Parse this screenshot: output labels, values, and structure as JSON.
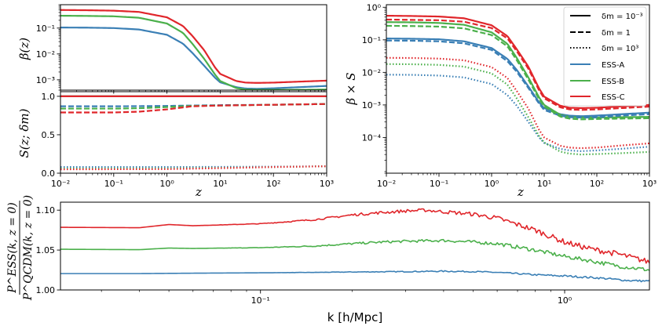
{
  "colors": {
    "ESS-A": "#3a7fb5",
    "ESS-B": "#4bb04b",
    "ESS-C": "#e0262b"
  },
  "chart_data": [
    {
      "id": "beta",
      "type": "line",
      "xscale": "log",
      "yscale": "log",
      "xlim": [
        0.01,
        1000
      ],
      "ylim": [
        0.0004,
        0.8
      ],
      "xticks": [
        0.01,
        0.1,
        1,
        10,
        100,
        1000
      ],
      "xticklabels": [],
      "yticks": [
        0.001,
        0.01,
        0.1
      ],
      "yticklabels": [
        "10⁻³",
        "10⁻²",
        "10⁻¹"
      ],
      "ylabel": "β(z)",
      "xlabel": "",
      "series": [
        {
          "name": "ESS-A",
          "style": "solid",
          "x": [
            0.01,
            0.03,
            0.1,
            0.3,
            1,
            2,
            3,
            5,
            8,
            10,
            20,
            30,
            50,
            100,
            300,
            1000
          ],
          "y": [
            0.105,
            0.104,
            0.1,
            0.088,
            0.055,
            0.025,
            0.011,
            0.0035,
            0.0012,
            0.0008,
            0.00052,
            0.00046,
            0.00045,
            0.00047,
            0.00052,
            0.00058
          ]
        },
        {
          "name": "ESS-B",
          "style": "solid",
          "x": [
            0.01,
            0.03,
            0.1,
            0.3,
            1,
            2,
            3,
            5,
            8,
            10,
            20,
            30,
            50,
            100,
            300,
            1000
          ],
          "y": [
            0.3,
            0.295,
            0.285,
            0.25,
            0.15,
            0.065,
            0.025,
            0.0065,
            0.0016,
            0.0009,
            0.00048,
            0.00042,
            0.00041,
            0.00041,
            0.00041,
            0.00042
          ]
        },
        {
          "name": "ESS-C",
          "style": "solid",
          "x": [
            0.01,
            0.03,
            0.1,
            0.3,
            1,
            2,
            3,
            5,
            8,
            10,
            20,
            30,
            50,
            100,
            300,
            1000
          ],
          "y": [
            0.5,
            0.49,
            0.47,
            0.42,
            0.26,
            0.12,
            0.05,
            0.014,
            0.003,
            0.0017,
            0.0009,
            0.00078,
            0.00076,
            0.00078,
            0.00085,
            0.00093
          ]
        }
      ]
    },
    {
      "id": "S",
      "type": "line",
      "xscale": "log",
      "yscale": "linear",
      "xlim": [
        0.01,
        1000
      ],
      "ylim": [
        0,
        1.06
      ],
      "xticks": [
        0.01,
        0.1,
        1,
        10,
        100,
        1000
      ],
      "xticklabels": [
        "10⁻²",
        "10⁻¹",
        "10⁰",
        "10¹",
        "10²",
        "10³"
      ],
      "yticks": [
        0,
        0.5,
        1.0
      ],
      "yticklabels": [
        "0.0",
        "0.5",
        "1.0"
      ],
      "ylabel": "S(z; δm)",
      "xlabel": "z",
      "series": [
        {
          "name": "ESS-A δm=10⁻³",
          "color": "ESS-A",
          "style": "solid",
          "x": [
            0.01,
            1000
          ],
          "y": [
            1.0,
            1.0
          ]
        },
        {
          "name": "ESS-B δm=10⁻³",
          "color": "ESS-B",
          "style": "solid",
          "x": [
            0.01,
            1000
          ],
          "y": [
            1.0,
            1.0
          ]
        },
        {
          "name": "ESS-C δm=10⁻³",
          "color": "ESS-C",
          "style": "solid",
          "x": [
            0.01,
            1000
          ],
          "y": [
            1.0,
            1.0
          ]
        },
        {
          "name": "ESS-A δm=1",
          "color": "ESS-A",
          "style": "dashed",
          "x": [
            0.01,
            0.1,
            0.3,
            1,
            3,
            10,
            100,
            1000
          ],
          "y": [
            0.87,
            0.87,
            0.872,
            0.875,
            0.88,
            0.885,
            0.89,
            0.9
          ]
        },
        {
          "name": "ESS-B δm=1",
          "color": "ESS-B",
          "style": "dashed",
          "x": [
            0.01,
            0.1,
            0.3,
            1,
            3,
            10,
            100,
            1000
          ],
          "y": [
            0.84,
            0.84,
            0.845,
            0.86,
            0.875,
            0.88,
            0.89,
            0.9
          ]
        },
        {
          "name": "ESS-C δm=1",
          "color": "ESS-C",
          "style": "dashed",
          "x": [
            0.01,
            0.1,
            0.3,
            1,
            3,
            10,
            100,
            1000
          ],
          "y": [
            0.79,
            0.79,
            0.8,
            0.83,
            0.87,
            0.88,
            0.89,
            0.9
          ]
        },
        {
          "name": "ESS-A δm=10³",
          "color": "ESS-A",
          "style": "dotted",
          "x": [
            0.01,
            1,
            10,
            100,
            1000
          ],
          "y": [
            0.08,
            0.08,
            0.082,
            0.085,
            0.09
          ]
        },
        {
          "name": "ESS-B δm=10³",
          "color": "ESS-B",
          "style": "dotted",
          "x": [
            0.01,
            1,
            10,
            100,
            1000
          ],
          "y": [
            0.06,
            0.062,
            0.07,
            0.08,
            0.09
          ]
        },
        {
          "name": "ESS-C δm=10³",
          "color": "ESS-C",
          "style": "dotted",
          "x": [
            0.01,
            1,
            10,
            100,
            1000
          ],
          "y": [
            0.05,
            0.053,
            0.065,
            0.08,
            0.09
          ]
        }
      ]
    },
    {
      "id": "betaS",
      "type": "line",
      "xscale": "log",
      "yscale": "log",
      "xlim": [
        0.01,
        1000
      ],
      "ylim": [
        8e-06,
        1.2
      ],
      "xticks": [
        0.01,
        0.1,
        1,
        10,
        100,
        1000
      ],
      "xticklabels": [
        "10⁻²",
        "10⁻¹",
        "10⁰",
        "10¹",
        "10²",
        "10³"
      ],
      "yticks": [
        0.0001,
        0.001,
        0.01,
        0.1,
        1
      ],
      "yticklabels": [
        "10⁻⁴",
        "10⁻³",
        "10⁻²",
        "10⁻¹",
        "10⁰"
      ],
      "ylabel": "β × S",
      "xlabel": "z",
      "legend": {
        "location": "top-right",
        "styles": [
          {
            "label": "δm = 10⁻³",
            "style": "solid"
          },
          {
            "label": "δm = 1",
            "style": "dashed"
          },
          {
            "label": "δm = 10³",
            "style": "dotted"
          }
        ],
        "models": [
          {
            "label": "ESS-A",
            "color": "ESS-A"
          },
          {
            "label": "ESS-B",
            "color": "ESS-B"
          },
          {
            "label": "ESS-C",
            "color": "ESS-C"
          }
        ]
      },
      "series": [
        {
          "name": "ESS-A δm=10⁻³",
          "color": "ESS-A",
          "style": "solid",
          "x": [
            0.01,
            0.03,
            0.1,
            0.3,
            1,
            2,
            3,
            5,
            8,
            10,
            20,
            30,
            50,
            100,
            300,
            1000
          ],
          "y": [
            0.11,
            0.108,
            0.104,
            0.09,
            0.056,
            0.026,
            0.012,
            0.0037,
            0.0012,
            0.0008,
            0.00052,
            0.00047,
            0.00045,
            0.00047,
            0.00052,
            0.00058
          ]
        },
        {
          "name": "ESS-B δm=10⁻³",
          "color": "ESS-B",
          "style": "solid",
          "x": [
            0.01,
            0.03,
            0.1,
            0.3,
            1,
            2,
            3,
            5,
            8,
            10,
            20,
            30,
            50,
            100,
            300,
            1000
          ],
          "y": [
            0.35,
            0.345,
            0.33,
            0.29,
            0.17,
            0.075,
            0.028,
            0.007,
            0.0017,
            0.001,
            0.0005,
            0.00043,
            0.00041,
            0.00041,
            0.00042,
            0.00043
          ]
        },
        {
          "name": "ESS-C δm=10⁻³",
          "color": "ESS-C",
          "style": "solid",
          "x": [
            0.01,
            0.03,
            0.1,
            0.3,
            1,
            2,
            3,
            5,
            8,
            10,
            20,
            30,
            50,
            100,
            300,
            1000
          ],
          "y": [
            0.55,
            0.54,
            0.52,
            0.46,
            0.28,
            0.13,
            0.052,
            0.015,
            0.0032,
            0.0018,
            0.00095,
            0.00082,
            0.0008,
            0.00082,
            0.0009,
            0.001
          ]
        },
        {
          "name": "ESS-A δm=1",
          "color": "ESS-A",
          "style": "dashed",
          "x": [
            0.01,
            0.03,
            0.1,
            0.3,
            1,
            2,
            3,
            5,
            8,
            10,
            20,
            30,
            50,
            100,
            300,
            1000
          ],
          "y": [
            0.095,
            0.094,
            0.09,
            0.078,
            0.049,
            0.022,
            0.0105,
            0.0033,
            0.0011,
            0.0007,
            0.00047,
            0.00042,
            0.00041,
            0.00042,
            0.00047,
            0.00052
          ]
        },
        {
          "name": "ESS-B δm=1",
          "color": "ESS-B",
          "style": "dashed",
          "x": [
            0.01,
            0.03,
            0.1,
            0.3,
            1,
            2,
            3,
            5,
            8,
            10,
            20,
            30,
            50,
            100,
            300,
            1000
          ],
          "y": [
            0.27,
            0.265,
            0.255,
            0.225,
            0.14,
            0.063,
            0.024,
            0.006,
            0.0015,
            0.0009,
            0.00044,
            0.00038,
            0.00036,
            0.00037,
            0.00038,
            0.00039
          ]
        },
        {
          "name": "ESS-C δm=1",
          "color": "ESS-C",
          "style": "dashed",
          "x": [
            0.01,
            0.03,
            0.1,
            0.3,
            1,
            2,
            3,
            5,
            8,
            10,
            20,
            30,
            50,
            100,
            300,
            1000
          ],
          "y": [
            0.42,
            0.41,
            0.4,
            0.36,
            0.23,
            0.11,
            0.045,
            0.013,
            0.0028,
            0.0016,
            0.00085,
            0.00073,
            0.0007,
            0.00073,
            0.0008,
            0.00089
          ]
        },
        {
          "name": "ESS-A δm=10³",
          "color": "ESS-A",
          "style": "dotted",
          "x": [
            0.01,
            0.03,
            0.1,
            0.3,
            1,
            2,
            3,
            5,
            8,
            10,
            20,
            30,
            50,
            100,
            300,
            1000
          ],
          "y": [
            0.0085,
            0.0084,
            0.008,
            0.007,
            0.0044,
            0.002,
            0.00095,
            0.0003,
            0.0001,
            6.8e-05,
            4.5e-05,
            4e-05,
            3.8e-05,
            4e-05,
            4.5e-05,
            5.2e-05
          ]
        },
        {
          "name": "ESS-B δm=10³",
          "color": "ESS-B",
          "style": "dotted",
          "x": [
            0.01,
            0.03,
            0.1,
            0.3,
            1,
            2,
            3,
            5,
            8,
            10,
            20,
            30,
            50,
            100,
            300,
            1000
          ],
          "y": [
            0.018,
            0.0178,
            0.017,
            0.015,
            0.0093,
            0.0042,
            0.0016,
            0.00042,
            0.00011,
            7e-05,
            3.7e-05,
            3.2e-05,
            3e-05,
            3.1e-05,
            3.3e-05,
            3.6e-05
          ]
        },
        {
          "name": "ESS-C δm=10³",
          "color": "ESS-C",
          "style": "dotted",
          "x": [
            0.01,
            0.03,
            0.1,
            0.3,
            1,
            2,
            3,
            5,
            8,
            10,
            20,
            30,
            50,
            100,
            300,
            1000
          ],
          "y": [
            0.028,
            0.0277,
            0.0265,
            0.0235,
            0.0145,
            0.0067,
            0.0027,
            0.00077,
            0.00017,
            0.0001,
            5.6e-05,
            4.9e-05,
            4.7e-05,
            4.9e-05,
            5.7e-05,
            6.6e-05
          ]
        }
      ]
    },
    {
      "id": "ratio",
      "type": "line",
      "xscale": "log",
      "yscale": "linear",
      "xlim": [
        0.022,
        1.9
      ],
      "ylim": [
        1.0,
        1.11
      ],
      "xticks": [
        0.1,
        1
      ],
      "xticklabels": [
        "10⁻¹",
        "10⁰"
      ],
      "yticks": [
        1.0,
        1.05,
        1.1
      ],
      "yticklabels": [
        "1.00",
        "1.05",
        "1.10"
      ],
      "ylabel_num": "P^ESS(k, z = 0)",
      "ylabel_den": "P^QCDM(k, z = 0)",
      "xlabel": "k [h/Mpc]",
      "noise": [
        0.0,
        0.0,
        0.0,
        0.0
      ],
      "series": [
        {
          "name": "ESS-A",
          "color": "ESS-A",
          "style": "solid",
          "x": [
            0.022,
            0.04,
            0.06,
            0.1,
            0.15,
            0.2,
            0.3,
            0.4,
            0.5,
            0.6,
            0.8,
            1.0,
            1.3,
            1.6,
            1.9
          ],
          "y": [
            1.0205,
            1.0205,
            1.021,
            1.0215,
            1.022,
            1.0225,
            1.023,
            1.0235,
            1.023,
            1.022,
            1.019,
            1.0175,
            1.015,
            1.012,
            1.011
          ],
          "jitter": [
            0,
            0,
            0,
            0,
            0.0002,
            0.0004,
            0.0006,
            0.0008,
            0.0008,
            0.0008,
            0.001,
            0.0012,
            0.0012,
            0.0012,
            0.0012
          ]
        },
        {
          "name": "ESS-B",
          "color": "ESS-B",
          "style": "solid",
          "x": [
            0.022,
            0.04,
            0.05,
            0.06,
            0.1,
            0.15,
            0.2,
            0.25,
            0.3,
            0.4,
            0.5,
            0.6,
            0.8,
            1.0,
            1.2,
            1.5,
            1.9
          ],
          "y": [
            1.051,
            1.0505,
            1.0525,
            1.052,
            1.053,
            1.055,
            1.058,
            1.06,
            1.061,
            1.062,
            1.06,
            1.058,
            1.05,
            1.042,
            1.037,
            1.03,
            1.025
          ],
          "jitter": [
            0,
            0,
            0,
            0,
            0.0003,
            0.0008,
            0.0012,
            0.0015,
            0.0016,
            0.0018,
            0.002,
            0.0022,
            0.0025,
            0.0025,
            0.0025,
            0.0025,
            0.0025
          ]
        },
        {
          "name": "ESS-C",
          "color": "ESS-C",
          "style": "solid",
          "x": [
            0.022,
            0.04,
            0.05,
            0.06,
            0.1,
            0.15,
            0.2,
            0.25,
            0.3,
            0.35,
            0.4,
            0.5,
            0.6,
            0.8,
            1.0,
            1.2,
            1.5,
            1.9
          ],
          "y": [
            1.0785,
            1.078,
            1.082,
            1.0805,
            1.083,
            1.088,
            1.094,
            1.097,
            1.099,
            1.1,
            1.098,
            1.095,
            1.09,
            1.075,
            1.06,
            1.052,
            1.045,
            1.035
          ],
          "jitter": [
            0,
            0,
            0,
            0,
            0.0004,
            0.001,
            0.0015,
            0.0018,
            0.002,
            0.002,
            0.0022,
            0.0025,
            0.003,
            0.0035,
            0.0035,
            0.0035,
            0.0035,
            0.0035
          ]
        }
      ]
    }
  ]
}
